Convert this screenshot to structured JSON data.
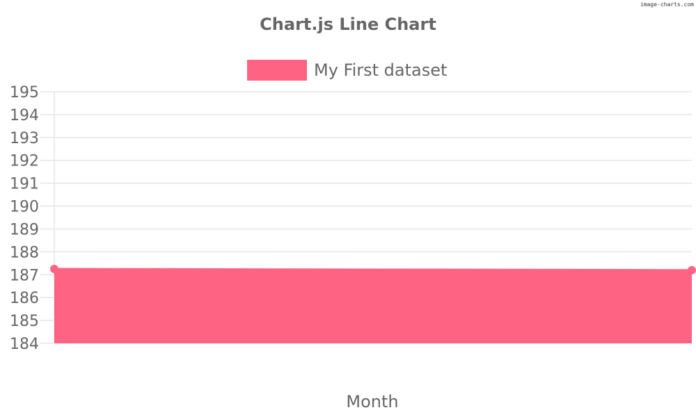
{
  "watermark": "image-charts.com",
  "colors": {
    "series": "#ff6384",
    "text": "#666666",
    "grid": "#e5e5e5"
  },
  "chart_data": {
    "type": "area",
    "title": "Chart.js Line Chart",
    "xlabel": "Month",
    "ylabel": "",
    "ylim": [
      184,
      195
    ],
    "yticks": [
      "184",
      "185",
      "186",
      "187",
      "188",
      "189",
      "190",
      "191",
      "192",
      "193",
      "194",
      "195"
    ],
    "grid": true,
    "legend_position": "top",
    "series": [
      {
        "name": "My First dataset",
        "values": [
          187.25,
          187.2
        ]
      }
    ]
  }
}
